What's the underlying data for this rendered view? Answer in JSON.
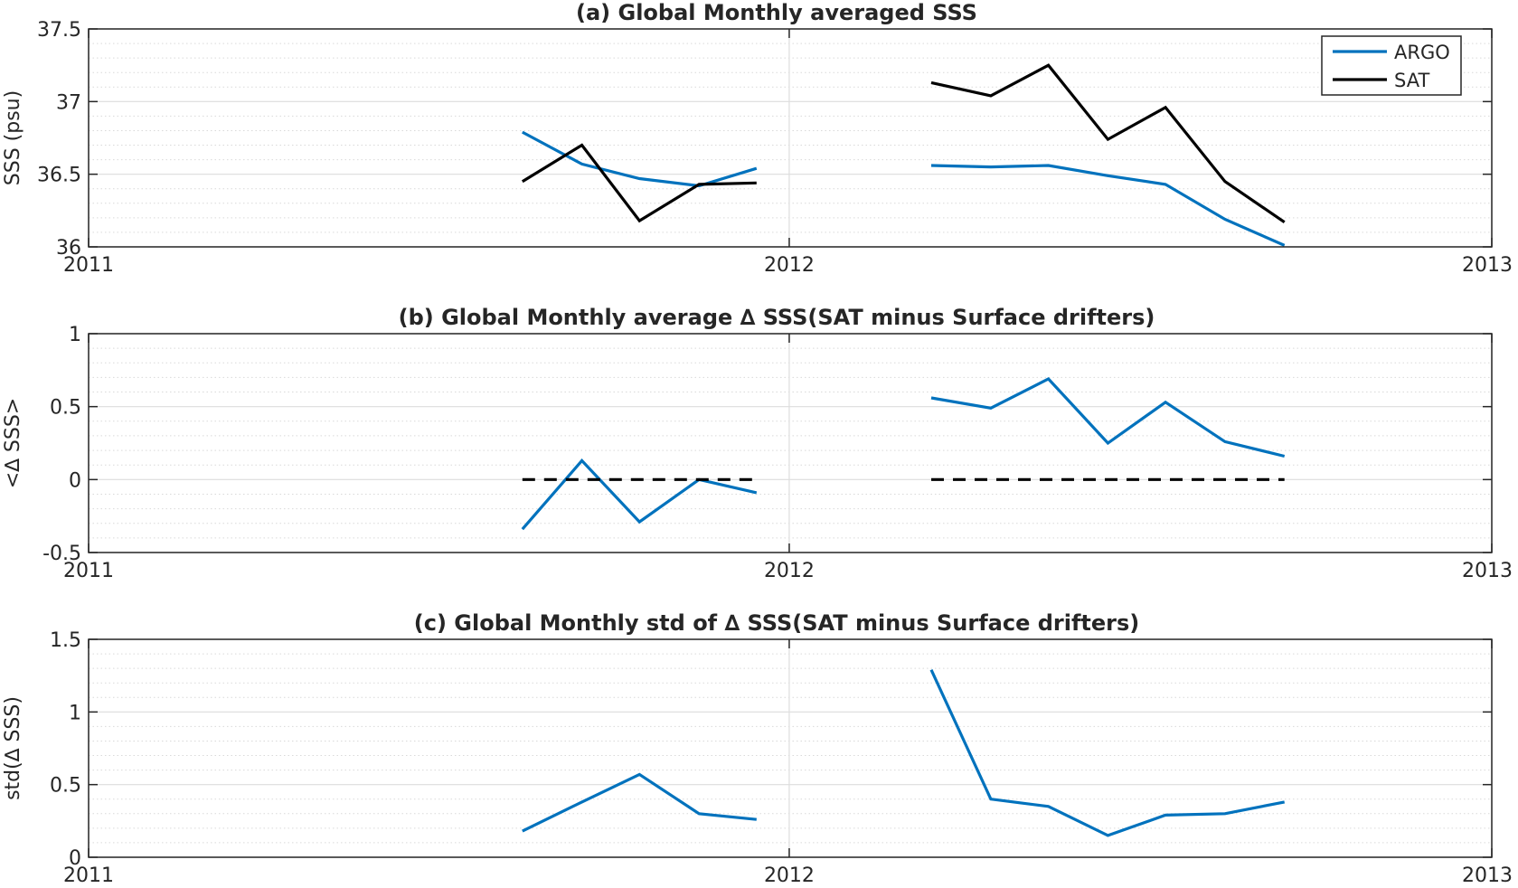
{
  "chart_data": [
    {
      "type": "line",
      "title": "(a) Global Monthly averaged SSS",
      "xlabel": "",
      "ylabel": "SSS (psu)",
      "xlim": [
        "2011-01-01",
        "2013-01-01"
      ],
      "ylim": [
        36,
        37.5
      ],
      "xticks": [
        "2011",
        "2012",
        "2013"
      ],
      "yticks": [
        "36",
        "36.5",
        "37",
        "37.5"
      ],
      "grid": true,
      "legend": "top-right",
      "series": [
        {
          "name": "ARGO",
          "color": "#0072BD",
          "dashed": false,
          "segments": [
            {
              "x": [
                "2011-08-15",
                "2011-09-15",
                "2011-10-15",
                "2011-11-15",
                "2011-12-15"
              ],
              "y": [
                36.79,
                36.57,
                36.47,
                36.42,
                36.54
              ]
            },
            {
              "x": [
                "2012-03-15",
                "2012-04-15",
                "2012-05-15",
                "2012-06-15",
                "2012-07-15",
                "2012-08-15",
                "2012-09-15"
              ],
              "y": [
                36.56,
                36.55,
                36.56,
                36.49,
                36.43,
                36.19,
                36.01
              ]
            }
          ]
        },
        {
          "name": "SAT",
          "color": "#000000",
          "dashed": false,
          "segments": [
            {
              "x": [
                "2011-08-15",
                "2011-09-15",
                "2011-10-15",
                "2011-11-15",
                "2011-12-15"
              ],
              "y": [
                36.45,
                36.7,
                36.18,
                36.43,
                36.44
              ]
            },
            {
              "x": [
                "2012-03-15",
                "2012-04-15",
                "2012-05-15",
                "2012-06-15",
                "2012-07-15",
                "2012-08-15",
                "2012-09-15"
              ],
              "y": [
                37.13,
                37.04,
                37.25,
                36.74,
                36.96,
                36.45,
                36.17
              ]
            }
          ]
        }
      ]
    },
    {
      "type": "line",
      "title": "(b) Global Monthly average ∆ SSS(SAT minus Surface drifters)",
      "xlabel": "",
      "ylabel": "<∆ SSS>",
      "xlim": [
        "2011-01-01",
        "2013-01-01"
      ],
      "ylim": [
        -0.5,
        1
      ],
      "xticks": [
        "2011",
        "2012",
        "2013"
      ],
      "yticks": [
        "-0.5",
        "0",
        "0.5",
        "1"
      ],
      "grid": true,
      "series": [
        {
          "color": "#0072BD",
          "dashed": false,
          "segments": [
            {
              "x": [
                "2011-08-15",
                "2011-09-15",
                "2011-10-15",
                "2011-11-15",
                "2011-12-15"
              ],
              "y": [
                -0.34,
                0.13,
                -0.29,
                0.0,
                -0.09
              ]
            },
            {
              "x": [
                "2012-03-15",
                "2012-04-15",
                "2012-05-15",
                "2012-06-15",
                "2012-07-15",
                "2012-08-15",
                "2012-09-15"
              ],
              "y": [
                0.56,
                0.49,
                0.69,
                0.25,
                0.53,
                0.26,
                0.16
              ]
            }
          ]
        },
        {
          "color": "#000000",
          "dashed": true,
          "segments": [
            {
              "x": [
                "2011-08-15",
                "2011-12-15"
              ],
              "y": [
                0,
                0
              ]
            },
            {
              "x": [
                "2012-03-15",
                "2012-09-15"
              ],
              "y": [
                0,
                0
              ]
            }
          ]
        }
      ]
    },
    {
      "type": "line",
      "title": "(c) Global Monthly std of ∆ SSS(SAT minus Surface drifters)",
      "xlabel": "",
      "ylabel": "std(∆ SSS)",
      "xlim": [
        "2011-01-01",
        "2013-01-01"
      ],
      "ylim": [
        0,
        1.5
      ],
      "xticks": [
        "2011",
        "2012",
        "2013"
      ],
      "yticks": [
        "0",
        "0.5",
        "1",
        "1.5"
      ],
      "grid": true,
      "series": [
        {
          "color": "#0072BD",
          "dashed": false,
          "segments": [
            {
              "x": [
                "2011-08-15",
                "2011-09-15",
                "2011-10-15",
                "2011-11-15",
                "2011-12-15"
              ],
              "y": [
                0.18,
                0.38,
                0.57,
                0.3,
                0.26
              ]
            },
            {
              "x": [
                "2012-03-15",
                "2012-04-15",
                "2012-05-15",
                "2012-06-15",
                "2012-07-15",
                "2012-08-15",
                "2012-09-15"
              ],
              "y": [
                1.29,
                0.4,
                0.35,
                0.15,
                0.29,
                0.3,
                0.38
              ]
            }
          ]
        }
      ]
    }
  ]
}
